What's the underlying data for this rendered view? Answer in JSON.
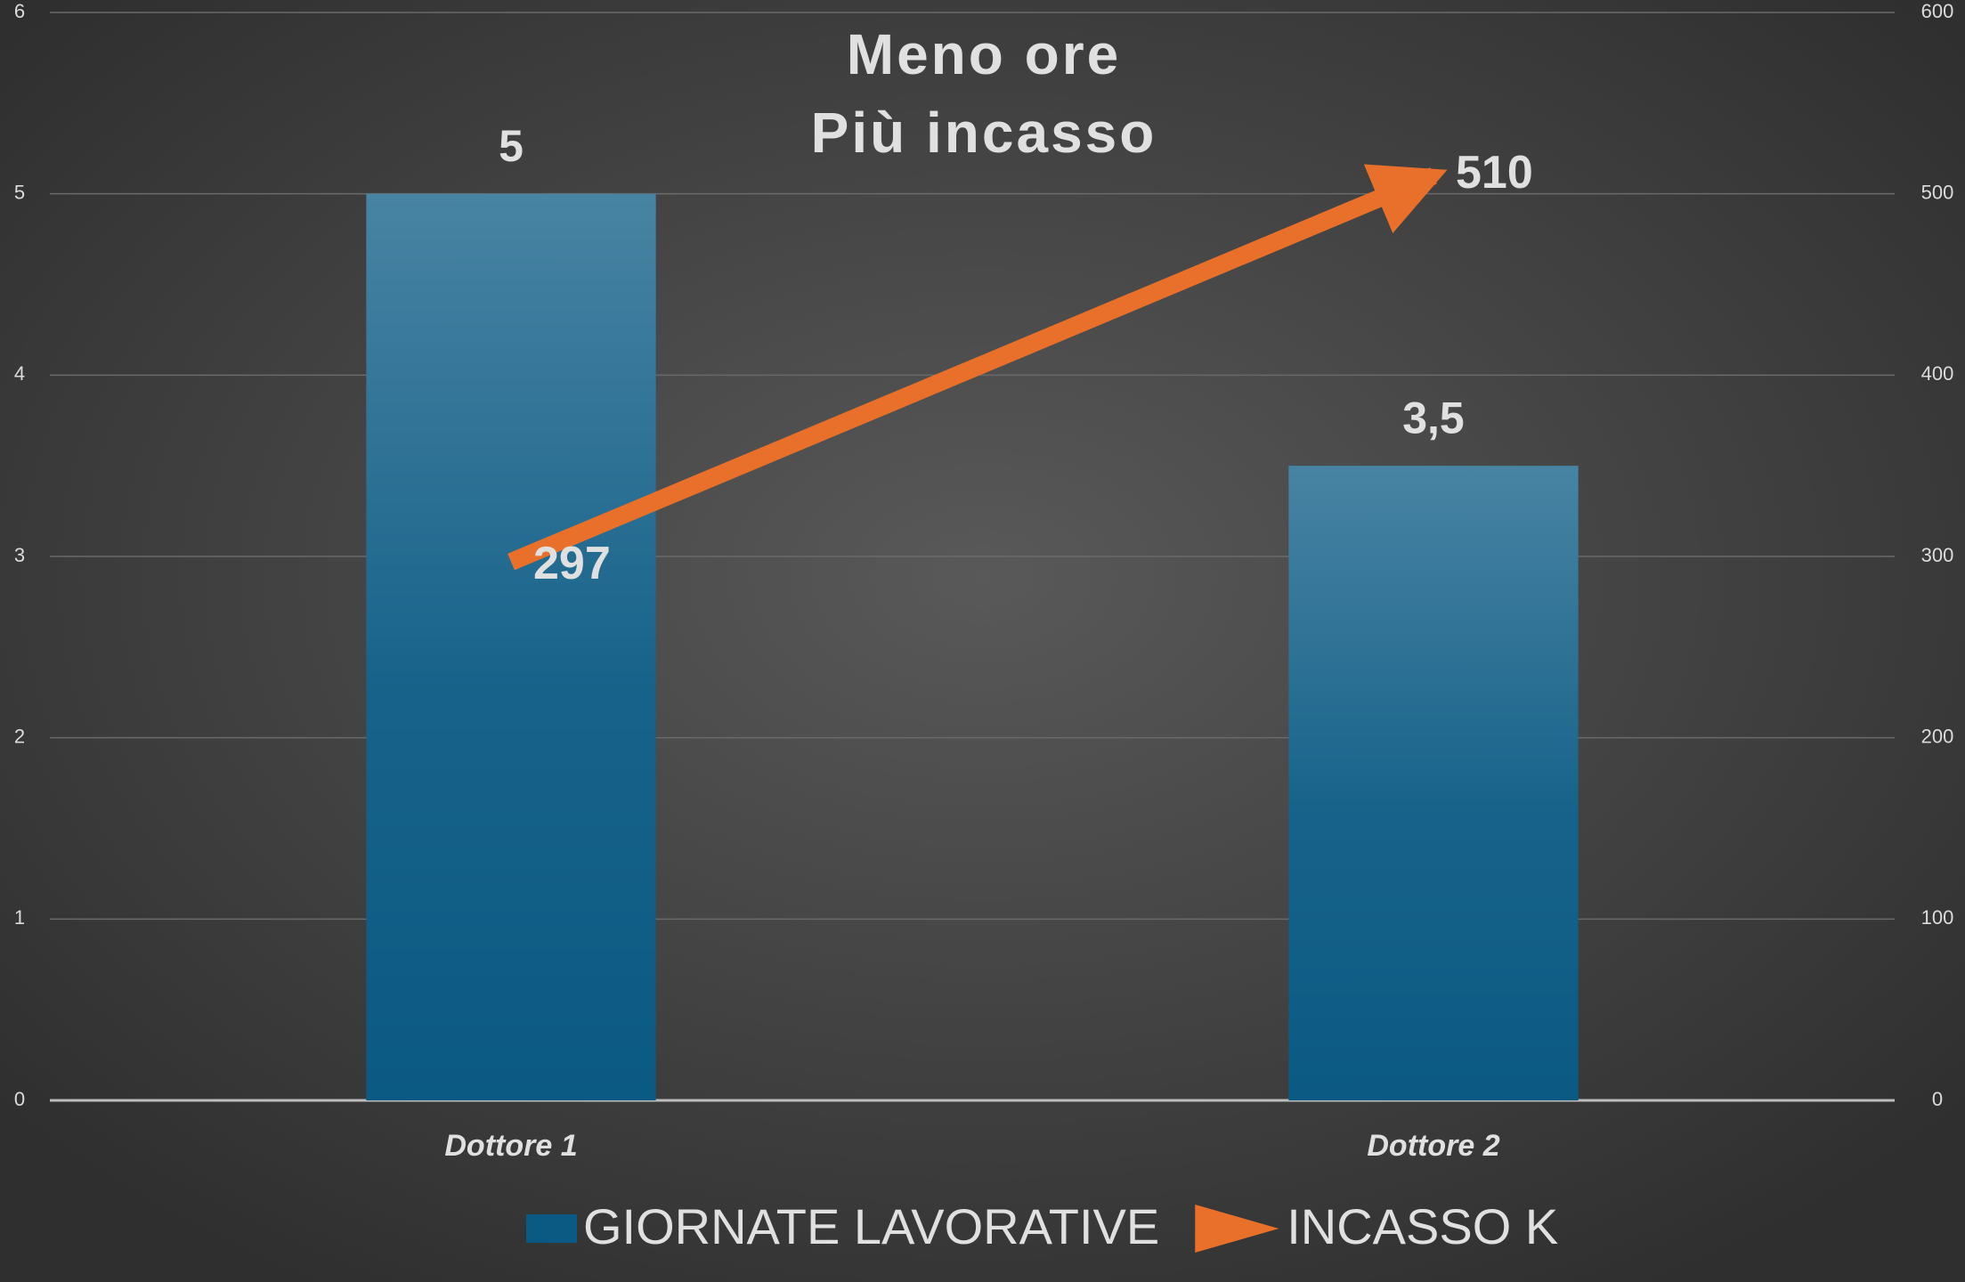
{
  "chart_data": {
    "type": "bar-line",
    "title": [
      "Meno ore",
      "Più incasso"
    ],
    "categories": [
      "Dottore 1",
      "Dottore 2"
    ],
    "series": [
      {
        "name": "GIORNATE LAVORATIVE",
        "type": "bar",
        "color": "#0b5a84",
        "values": [
          5,
          3.5
        ],
        "value_labels": [
          "5",
          "3,5"
        ]
      },
      {
        "name": "INCASSO K",
        "type": "line",
        "axis": "y2",
        "color": "#e8702a",
        "values": [
          297,
          510
        ]
      }
    ],
    "ylim": [
      0,
      6
    ],
    "yticks": [
      0,
      1,
      2,
      3,
      4,
      5,
      6
    ],
    "y2lim": [
      0,
      600
    ],
    "y2ticks": [
      0,
      100,
      200,
      300,
      400,
      500,
      600
    ],
    "grid": true,
    "legend": "bottom"
  }
}
